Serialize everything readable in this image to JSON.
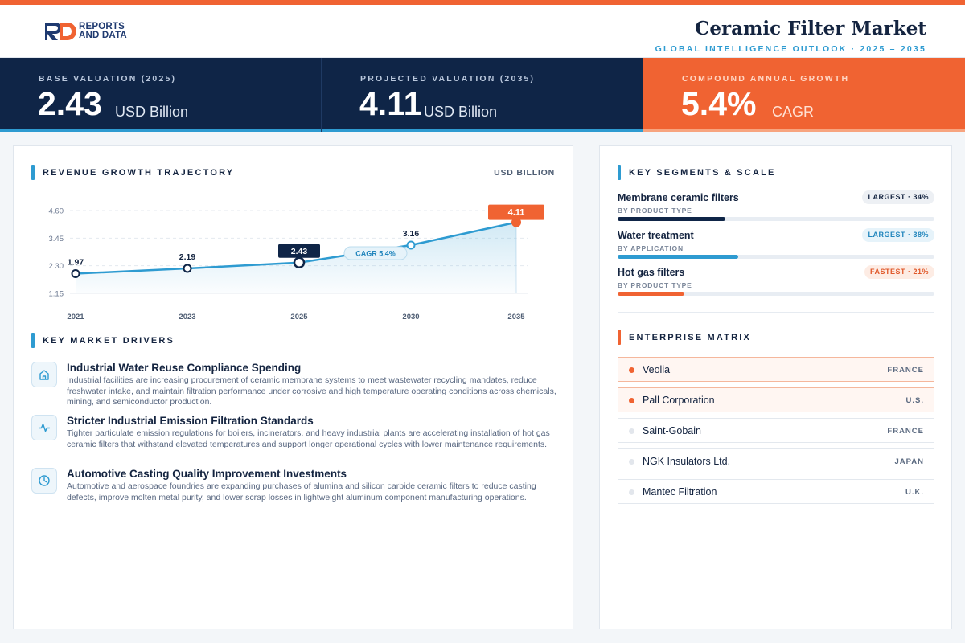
{
  "brand": {
    "line1": "REPORTS",
    "line2": "AND DATA"
  },
  "header": {
    "title": "Ceramic Filter Market",
    "subtitle": "GLOBAL INTELLIGENCE OUTLOOK · 2025 – 2035"
  },
  "kpis": [
    {
      "label": "BASE VALUATION (2025)",
      "value": "2.43",
      "unit": "USD Billion"
    },
    {
      "label": "PROJECTED VALUATION (2035)",
      "value": "4.11",
      "unit": "USD Billion"
    },
    {
      "label": "COMPOUND ANNUAL GROWTH",
      "value": "5.4%",
      "unit": "CAGR"
    }
  ],
  "trajectory": {
    "title": "REVENUE GROWTH TRAJECTORY",
    "units": "USD BILLION"
  },
  "chart_data": {
    "type": "area",
    "x": [
      "2021",
      "2023",
      "2025",
      "2030",
      "2035"
    ],
    "values": [
      1.97,
      2.19,
      2.43,
      3.16,
      4.11
    ],
    "value_labels": [
      "1.97",
      "2.19",
      "2.43",
      "3.16",
      "4.11"
    ],
    "y_ticks": [
      "4.60",
      "3.45",
      "2.30",
      "1.15"
    ],
    "ylim": [
      1.15,
      4.6
    ],
    "annotation": "CAGR 5.4%",
    "highlight_points": {
      "base": "2025",
      "projected": "2035"
    },
    "grid": "horizontal dashed",
    "colors": {
      "line": "#2e9bd1",
      "base": "#0f2547",
      "projected": "#f06332"
    }
  },
  "drivers": {
    "title": "KEY MARKET DRIVERS",
    "items": [
      {
        "icon": "factory-icon",
        "title": "Industrial Water Reuse Compliance Spending",
        "desc": "Industrial facilities are increasing procurement of ceramic membrane systems to meet wastewater recycling mandates, reduce freshwater intake, and maintain filtration performance under corrosive and high temperature operating conditions across chemicals, mining, and semiconductor production."
      },
      {
        "icon": "pulse-icon",
        "title": "Stricter Industrial Emission Filtration Standards",
        "desc": "Tighter particulate emission regulations for boilers, incinerators, and heavy industrial plants are accelerating installation of hot gas ceramic filters that withstand elevated temperatures and support longer operational cycles with lower maintenance requirements."
      },
      {
        "icon": "clock-icon",
        "title": "Automotive Casting Quality Improvement Investments",
        "desc": "Automotive and aerospace foundries are expanding purchases of alumina and silicon carbide ceramic filters to reduce casting defects, improve molten metal purity, and lower scrap losses in lightweight aluminum component manufacturing operations."
      }
    ]
  },
  "segments": {
    "title": "KEY SEGMENTS & SCALE",
    "items": [
      {
        "name": "Membrane ceramic filters",
        "sub": "BY PRODUCT TYPE",
        "badge": "LARGEST · 34%",
        "share": 34,
        "color": "#0f2547",
        "badge_bg": "#edf0f4",
        "badge_fg": "#142440"
      },
      {
        "name": "Water treatment",
        "sub": "BY APPLICATION",
        "badge": "LARGEST · 38%",
        "share": 38,
        "color": "#2e9bd1",
        "badge_bg": "#e6f3fa",
        "badge_fg": "#2286bd"
      },
      {
        "name": "Hot gas filters",
        "sub": "BY PRODUCT TYPE",
        "badge": "FASTEST · 21%",
        "share": 21,
        "color": "#f06332",
        "badge_bg": "#fdece4",
        "badge_fg": "#e0582a"
      }
    ]
  },
  "enterprise": {
    "title": "ENTERPRISE MATRIX",
    "items": [
      {
        "name": "Veolia",
        "country": "FRANCE",
        "highlight": true
      },
      {
        "name": "Pall Corporation",
        "country": "U.S.",
        "highlight": true
      },
      {
        "name": "Saint-Gobain",
        "country": "FRANCE",
        "highlight": false
      },
      {
        "name": "NGK Insulators Ltd.",
        "country": "JAPAN",
        "highlight": false
      },
      {
        "name": "Mantec Filtration",
        "country": "U.K.",
        "highlight": false
      }
    ]
  }
}
